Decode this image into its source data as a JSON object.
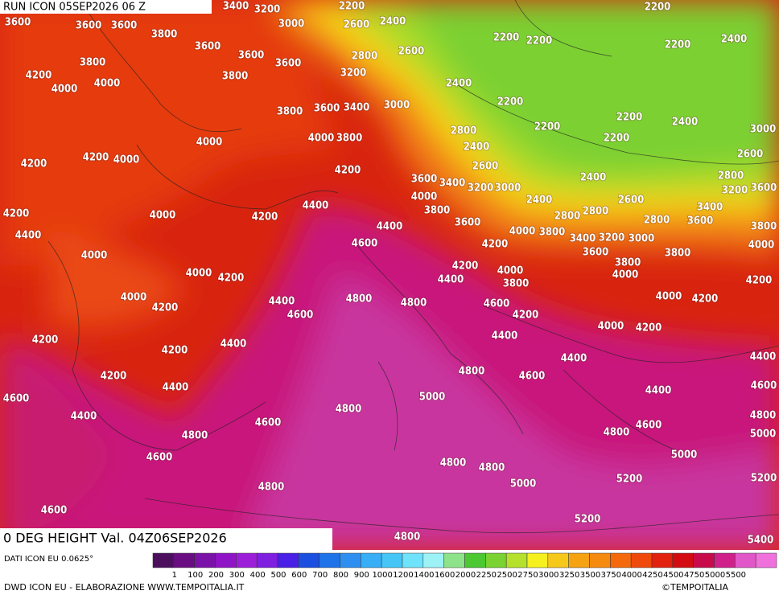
{
  "header": {
    "run_title": "RUN ICON 05SEP2026 06 Z"
  },
  "map": {
    "caption": "0 DEG HEIGHT Val. 04Z06SEP2026",
    "contour_labels": [
      3600,
      3600,
      3600,
      3800,
      3600,
      3600,
      3600,
      3800,
      3800,
      4200,
      4000,
      4000,
      3400,
      3200,
      3000,
      2200,
      2600,
      2400,
      2800,
      2600,
      3200,
      2400,
      2200,
      2200,
      2200,
      2200,
      2400,
      2200,
      2200,
      2200,
      2200,
      2400,
      3000,
      2600,
      2800,
      3200,
      3600,
      3800,
      3600,
      3400,
      3000,
      2800,
      2400,
      2600,
      2400,
      2400,
      2600,
      3400,
      3600,
      3800,
      4000,
      4200,
      4000,
      4000,
      3800,
      4200,
      4200,
      4000,
      4200,
      3600,
      3400,
      4000,
      3200,
      3000,
      3800,
      3600,
      4000,
      3800,
      3400,
      3200,
      3000,
      2800,
      2800,
      2800,
      4200,
      4400,
      4000,
      4200,
      4400,
      4400,
      4600,
      4200,
      3600,
      3800,
      3800,
      4000,
      4000,
      4000,
      4200,
      4200,
      4000,
      4400,
      3800,
      4000,
      4200,
      4400,
      4600,
      4800,
      4800,
      4600,
      4200,
      4000,
      4200,
      4400,
      4000,
      4200,
      4200,
      4200,
      4400,
      4400,
      4400,
      4200,
      4800,
      4600,
      4400,
      5000,
      4400,
      4600,
      4600,
      4400,
      4800,
      4600,
      4600,
      4800,
      4800,
      4800,
      5000,
      4600,
      4800,
      4800,
      5000,
      4800,
      5000,
      5200,
      5200,
      4600,
      5200,
      4800,
      5400
    ]
  },
  "legend": {
    "source": "DATI ICON EU 0.0625°",
    "colors": [
      "#4b0f5e",
      "#6a0d82",
      "#7a12a8",
      "#8f14c6",
      "#9c1ed8",
      "#7f1fe0",
      "#4a20e6",
      "#1b4fe0",
      "#1f73e8",
      "#2e8ff0",
      "#37aef5",
      "#45c6f7",
      "#6ee3fb",
      "#9df2f6",
      "#8ee38a",
      "#4cc832",
      "#7ad233",
      "#b5e02c",
      "#f5f01e",
      "#f6c81a",
      "#f5a312",
      "#f58a0f",
      "#f4690c",
      "#ef4a0c",
      "#e2220e",
      "#d20c10",
      "#c80c4a",
      "#d0208a",
      "#e257c8",
      "#f071dc"
    ],
    "labels": [
      1,
      100,
      200,
      300,
      400,
      500,
      600,
      700,
      800,
      900,
      1000,
      1200,
      1400,
      1600,
      2000,
      2250,
      2500,
      2750,
      3000,
      3250,
      3500,
      3750,
      4000,
      4250,
      4500,
      4750,
      5000,
      5500
    ]
  },
  "credits": {
    "left": "DWD ICON EU - ELABORAZIONE WWW.TEMPOITALIA.IT",
    "right": "©TEMPOITALIA"
  }
}
